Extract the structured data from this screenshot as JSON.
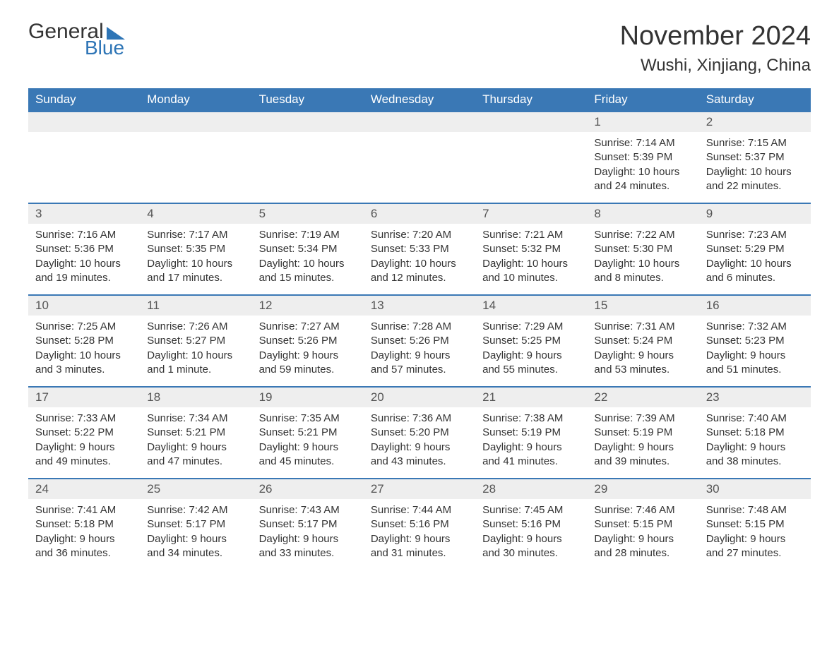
{
  "logo": {
    "text_general": "General",
    "text_blue": "Blue",
    "brand_color": "#2e75b6"
  },
  "title": "November 2024",
  "location": "Wushi, Xinjiang, China",
  "colors": {
    "header_bg": "#3a78b5",
    "header_text": "#ffffff",
    "daybar_bg": "#eeeeee",
    "border": "#3a78b5",
    "body_text": "#333333"
  },
  "day_headers": [
    "Sunday",
    "Monday",
    "Tuesday",
    "Wednesday",
    "Thursday",
    "Friday",
    "Saturday"
  ],
  "labels": {
    "sunrise": "Sunrise: ",
    "sunset": "Sunset: ",
    "daylight": "Daylight: "
  },
  "weeks": [
    [
      null,
      null,
      null,
      null,
      null,
      {
        "n": "1",
        "sr": "7:14 AM",
        "ss": "5:39 PM",
        "dl": "10 hours and 24 minutes."
      },
      {
        "n": "2",
        "sr": "7:15 AM",
        "ss": "5:37 PM",
        "dl": "10 hours and 22 minutes."
      }
    ],
    [
      {
        "n": "3",
        "sr": "7:16 AM",
        "ss": "5:36 PM",
        "dl": "10 hours and 19 minutes."
      },
      {
        "n": "4",
        "sr": "7:17 AM",
        "ss": "5:35 PM",
        "dl": "10 hours and 17 minutes."
      },
      {
        "n": "5",
        "sr": "7:19 AM",
        "ss": "5:34 PM",
        "dl": "10 hours and 15 minutes."
      },
      {
        "n": "6",
        "sr": "7:20 AM",
        "ss": "5:33 PM",
        "dl": "10 hours and 12 minutes."
      },
      {
        "n": "7",
        "sr": "7:21 AM",
        "ss": "5:32 PM",
        "dl": "10 hours and 10 minutes."
      },
      {
        "n": "8",
        "sr": "7:22 AM",
        "ss": "5:30 PM",
        "dl": "10 hours and 8 minutes."
      },
      {
        "n": "9",
        "sr": "7:23 AM",
        "ss": "5:29 PM",
        "dl": "10 hours and 6 minutes."
      }
    ],
    [
      {
        "n": "10",
        "sr": "7:25 AM",
        "ss": "5:28 PM",
        "dl": "10 hours and 3 minutes."
      },
      {
        "n": "11",
        "sr": "7:26 AM",
        "ss": "5:27 PM",
        "dl": "10 hours and 1 minute."
      },
      {
        "n": "12",
        "sr": "7:27 AM",
        "ss": "5:26 PM",
        "dl": "9 hours and 59 minutes."
      },
      {
        "n": "13",
        "sr": "7:28 AM",
        "ss": "5:26 PM",
        "dl": "9 hours and 57 minutes."
      },
      {
        "n": "14",
        "sr": "7:29 AM",
        "ss": "5:25 PM",
        "dl": "9 hours and 55 minutes."
      },
      {
        "n": "15",
        "sr": "7:31 AM",
        "ss": "5:24 PM",
        "dl": "9 hours and 53 minutes."
      },
      {
        "n": "16",
        "sr": "7:32 AM",
        "ss": "5:23 PM",
        "dl": "9 hours and 51 minutes."
      }
    ],
    [
      {
        "n": "17",
        "sr": "7:33 AM",
        "ss": "5:22 PM",
        "dl": "9 hours and 49 minutes."
      },
      {
        "n": "18",
        "sr": "7:34 AM",
        "ss": "5:21 PM",
        "dl": "9 hours and 47 minutes."
      },
      {
        "n": "19",
        "sr": "7:35 AM",
        "ss": "5:21 PM",
        "dl": "9 hours and 45 minutes."
      },
      {
        "n": "20",
        "sr": "7:36 AM",
        "ss": "5:20 PM",
        "dl": "9 hours and 43 minutes."
      },
      {
        "n": "21",
        "sr": "7:38 AM",
        "ss": "5:19 PM",
        "dl": "9 hours and 41 minutes."
      },
      {
        "n": "22",
        "sr": "7:39 AM",
        "ss": "5:19 PM",
        "dl": "9 hours and 39 minutes."
      },
      {
        "n": "23",
        "sr": "7:40 AM",
        "ss": "5:18 PM",
        "dl": "9 hours and 38 minutes."
      }
    ],
    [
      {
        "n": "24",
        "sr": "7:41 AM",
        "ss": "5:18 PM",
        "dl": "9 hours and 36 minutes."
      },
      {
        "n": "25",
        "sr": "7:42 AM",
        "ss": "5:17 PM",
        "dl": "9 hours and 34 minutes."
      },
      {
        "n": "26",
        "sr": "7:43 AM",
        "ss": "5:17 PM",
        "dl": "9 hours and 33 minutes."
      },
      {
        "n": "27",
        "sr": "7:44 AM",
        "ss": "5:16 PM",
        "dl": "9 hours and 31 minutes."
      },
      {
        "n": "28",
        "sr": "7:45 AM",
        "ss": "5:16 PM",
        "dl": "9 hours and 30 minutes."
      },
      {
        "n": "29",
        "sr": "7:46 AM",
        "ss": "5:15 PM",
        "dl": "9 hours and 28 minutes."
      },
      {
        "n": "30",
        "sr": "7:48 AM",
        "ss": "5:15 PM",
        "dl": "9 hours and 27 minutes."
      }
    ]
  ]
}
